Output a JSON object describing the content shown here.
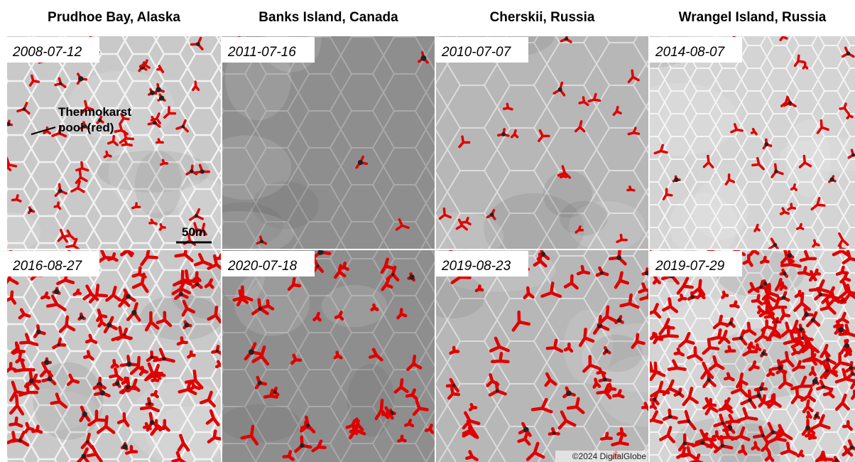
{
  "columns": [
    {
      "title": "Prudhoe Bay, Alaska",
      "panels": [
        {
          "date": "2008-07-12"
        },
        {
          "date": "2016-08-27"
        }
      ]
    },
    {
      "title": "Banks Island, Canada",
      "panels": [
        {
          "date": "2011-07-16"
        },
        {
          "date": "2020-07-18"
        }
      ]
    },
    {
      "title": "Cherskii, Russia",
      "panels": [
        {
          "date": "2010-07-07"
        },
        {
          "date": "2019-08-23"
        }
      ]
    },
    {
      "title": "Wrangel Island, Russia",
      "panels": [
        {
          "date": "2014-08-07"
        },
        {
          "date": "2019-07-29"
        }
      ]
    }
  ],
  "annotation": [
    "Thermokarst",
    "pool (red)"
  ],
  "scale_bar": "50m",
  "credit": "©2024 DigitalGlobe"
}
